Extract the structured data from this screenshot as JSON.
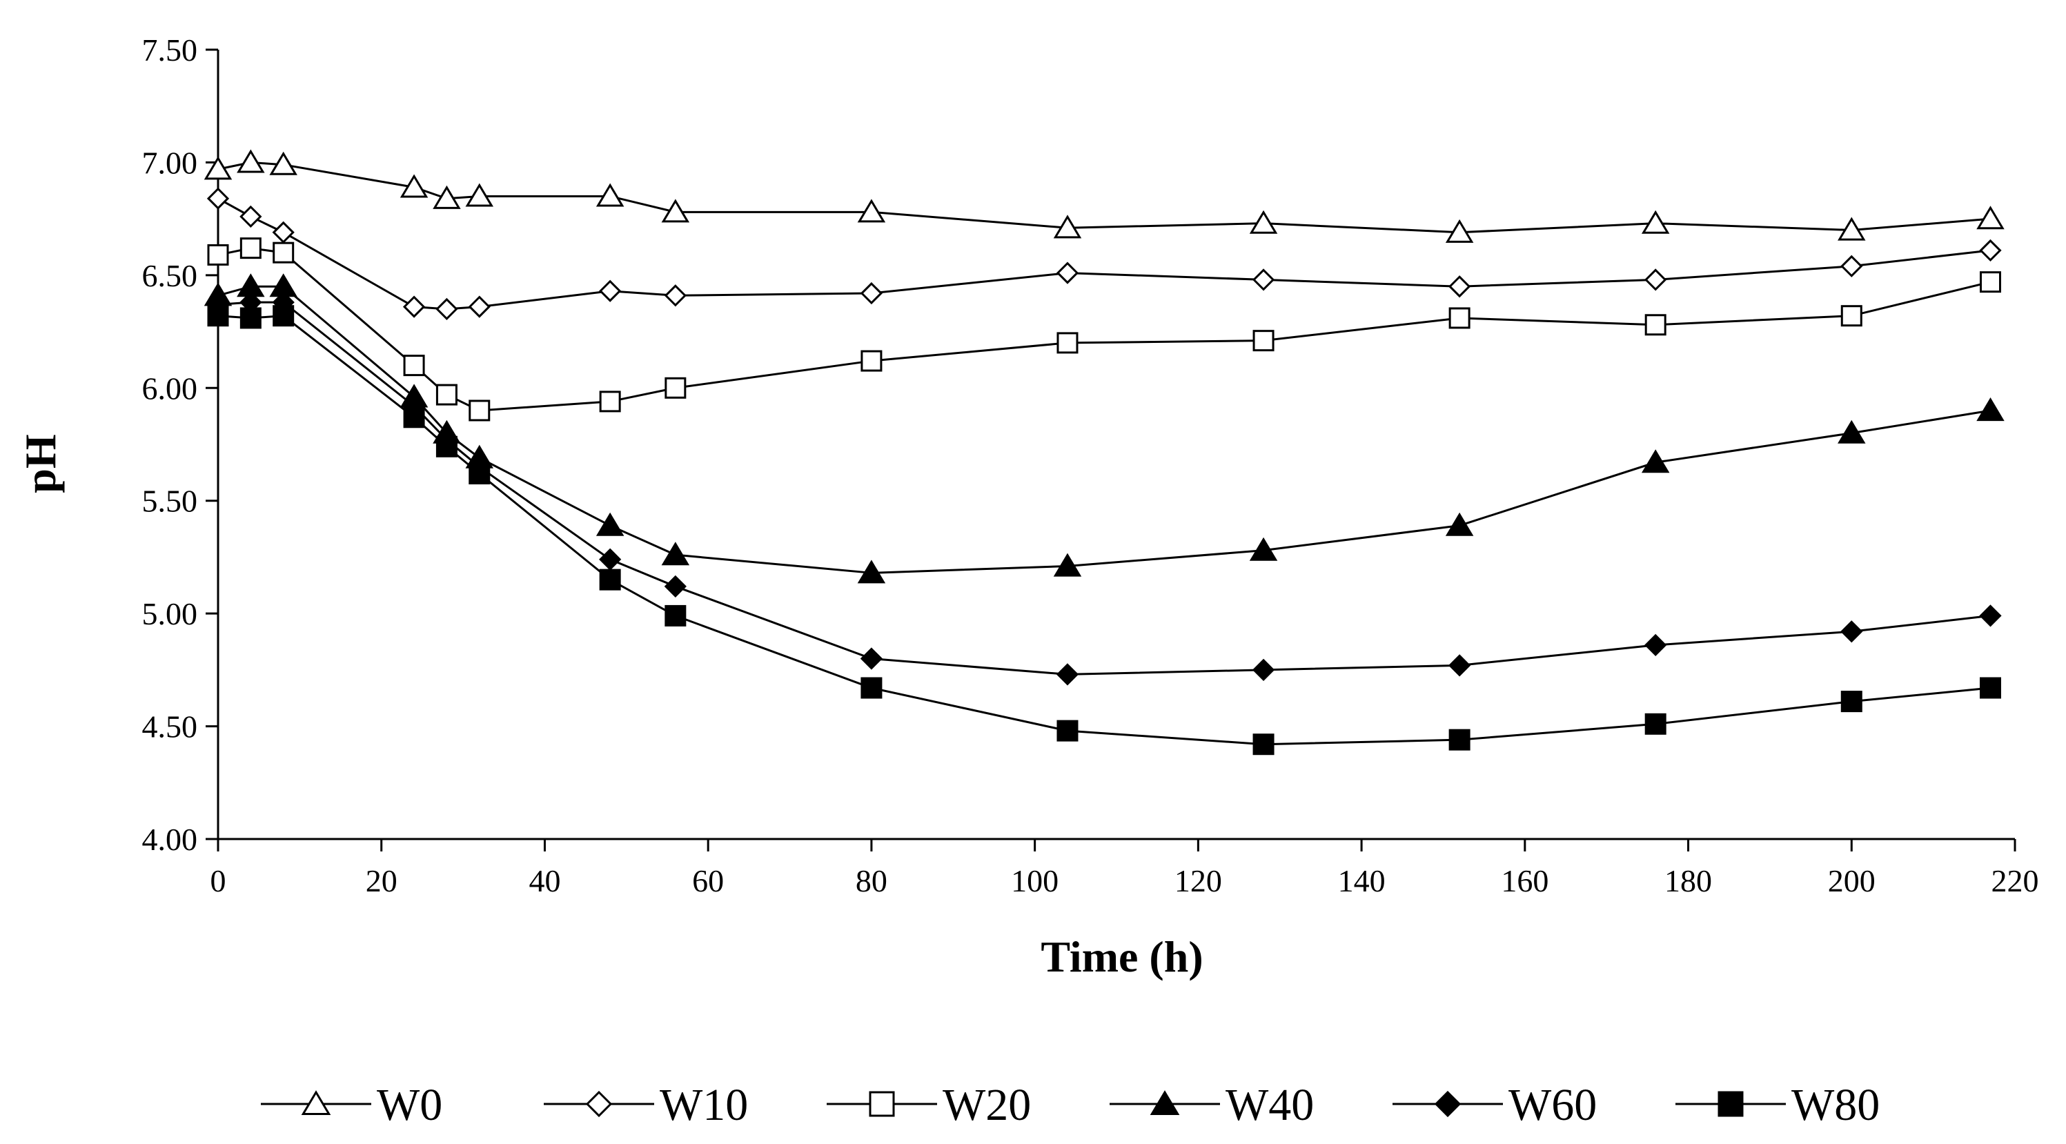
{
  "chart_data": {
    "type": "line",
    "title": "",
    "xlabel": "Time (h)",
    "ylabel": "pH",
    "xlim": [
      0,
      220
    ],
    "ylim": [
      4.0,
      7.5
    ],
    "xticks": [
      0,
      20,
      40,
      60,
      80,
      100,
      120,
      140,
      160,
      180,
      200,
      220
    ],
    "xtick_labels": [
      "0",
      "20",
      "40",
      "60",
      "80",
      "100",
      "120",
      "140",
      "160",
      "180",
      "200",
      "220"
    ],
    "yticks": [
      4.0,
      4.5,
      5.0,
      5.5,
      6.0,
      6.5,
      7.0,
      7.5
    ],
    "ytick_labels": [
      "4.00",
      "4.50",
      "5.00",
      "5.50",
      "6.00",
      "6.50",
      "7.00",
      "7.50"
    ],
    "grid": false,
    "legend_position": "bottom",
    "x": [
      0,
      4,
      8,
      24,
      28,
      32,
      48,
      56,
      80,
      104,
      128,
      152,
      176,
      200,
      217
    ],
    "series": [
      {
        "name": "W0",
        "marker": "triangle-open",
        "color": "#000000",
        "values": [
          6.97,
          7.0,
          6.99,
          6.89,
          6.84,
          6.85,
          6.85,
          6.78,
          6.78,
          6.71,
          6.73,
          6.69,
          6.73,
          6.7,
          6.75
        ]
      },
      {
        "name": "W10",
        "marker": "diamond-open",
        "color": "#000000",
        "values": [
          6.84,
          6.76,
          6.69,
          6.36,
          6.35,
          6.36,
          6.43,
          6.41,
          6.42,
          6.51,
          6.48,
          6.45,
          6.48,
          6.54,
          6.61
        ]
      },
      {
        "name": "W20",
        "marker": "square-open",
        "color": "#000000",
        "values": [
          6.59,
          6.62,
          6.6,
          6.1,
          5.97,
          5.9,
          5.94,
          6.0,
          6.12,
          6.2,
          6.21,
          6.31,
          6.28,
          6.32,
          6.47
        ]
      },
      {
        "name": "W40",
        "marker": "triangle-filled",
        "color": "#000000",
        "values": [
          6.41,
          6.45,
          6.45,
          5.96,
          5.8,
          5.69,
          5.39,
          5.26,
          5.18,
          5.21,
          5.28,
          5.39,
          5.67,
          5.8,
          5.9
        ]
      },
      {
        "name": "W60",
        "marker": "diamond-filled",
        "color": "#000000",
        "values": [
          6.37,
          6.38,
          6.38,
          5.92,
          5.77,
          5.65,
          5.24,
          5.12,
          4.8,
          4.73,
          4.75,
          4.77,
          4.86,
          4.92,
          4.99
        ]
      },
      {
        "name": "W80",
        "marker": "square-filled",
        "color": "#000000",
        "values": [
          6.32,
          6.31,
          6.32,
          5.87,
          5.74,
          5.62,
          5.15,
          4.99,
          4.67,
          4.48,
          4.42,
          4.44,
          4.51,
          4.61,
          4.67
        ]
      }
    ]
  }
}
